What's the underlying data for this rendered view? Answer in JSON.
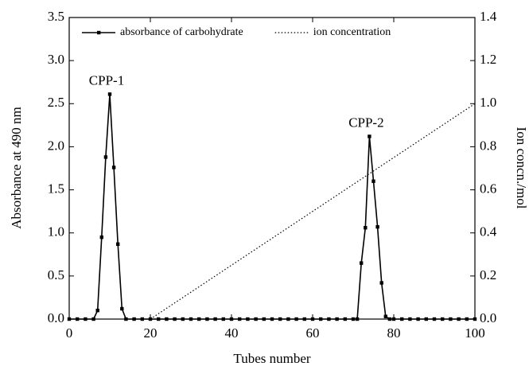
{
  "chart_data": {
    "type": "line",
    "xlabel": "Tubes number",
    "ylabel": "Absorbance at 490 nm",
    "y2label": "Ion concn./mol",
    "xlim": [
      0,
      100
    ],
    "xticks": [
      0,
      20,
      40,
      60,
      80,
      100
    ],
    "ylim": [
      0,
      3.5
    ],
    "yticks": [
      {
        "value": 0,
        "label": "0.0"
      },
      {
        "value": 0.5,
        "label": "0.5"
      },
      {
        "value": 1,
        "label": "1.0"
      },
      {
        "value": 1.5,
        "label": "1.5"
      },
      {
        "value": 2,
        "label": "2.0"
      },
      {
        "value": 2.5,
        "label": "2.5"
      },
      {
        "value": 3,
        "label": "3.0"
      },
      {
        "value": 3.5,
        "label": "3.5"
      }
    ],
    "y2lim": [
      0,
      1.4
    ],
    "y2ticks": [
      {
        "value": 0,
        "label": "0.0"
      },
      {
        "value": 0.2,
        "label": "0.2"
      },
      {
        "value": 0.4,
        "label": "0.4"
      },
      {
        "value": 0.6,
        "label": "0.6"
      },
      {
        "value": 0.8,
        "label": "0.8"
      },
      {
        "value": 1,
        "label": "1.0"
      },
      {
        "value": 1.2,
        "label": "1.2"
      },
      {
        "value": 1.4,
        "label": "1.4"
      }
    ],
    "legend": "top-left",
    "series": [
      {
        "name": "absorbance of carbohydrate",
        "color": "#000000",
        "style": "solid",
        "marker": "square",
        "x": [
          0,
          2,
          4,
          6,
          7,
          8,
          9,
          10,
          11,
          12,
          13,
          14,
          16,
          18,
          20,
          22,
          24,
          26,
          28,
          30,
          32,
          34,
          36,
          38,
          40,
          42,
          44,
          46,
          48,
          50,
          52,
          54,
          56,
          58,
          60,
          62,
          64,
          66,
          68,
          70,
          71,
          72,
          73,
          74,
          75,
          76,
          77,
          78,
          79,
          80,
          82,
          84,
          86,
          88,
          90,
          92,
          94,
          96,
          98,
          100
        ],
        "values": [
          0,
          0,
          0,
          0,
          0.1,
          0.95,
          1.88,
          2.61,
          1.76,
          0.87,
          0.12,
          0,
          0,
          0,
          0,
          0,
          0,
          0,
          0,
          0,
          0,
          0,
          0,
          0,
          0,
          0,
          0,
          0,
          0,
          0,
          0,
          0,
          0,
          0,
          0,
          0,
          0,
          0,
          0,
          0,
          0,
          0.65,
          1.06,
          2.12,
          1.6,
          1.07,
          0.42,
          0.03,
          0,
          0,
          0,
          0,
          0,
          0,
          0,
          0,
          0,
          0,
          0,
          0
        ]
      },
      {
        "name": "ion concentration",
        "color": "#000000",
        "style": "dotted",
        "axis": "y2",
        "x": [
          20,
          100
        ],
        "values": [
          0,
          1.0
        ]
      }
    ],
    "annotations": [
      "CPP-1",
      "CPP-2"
    ]
  }
}
